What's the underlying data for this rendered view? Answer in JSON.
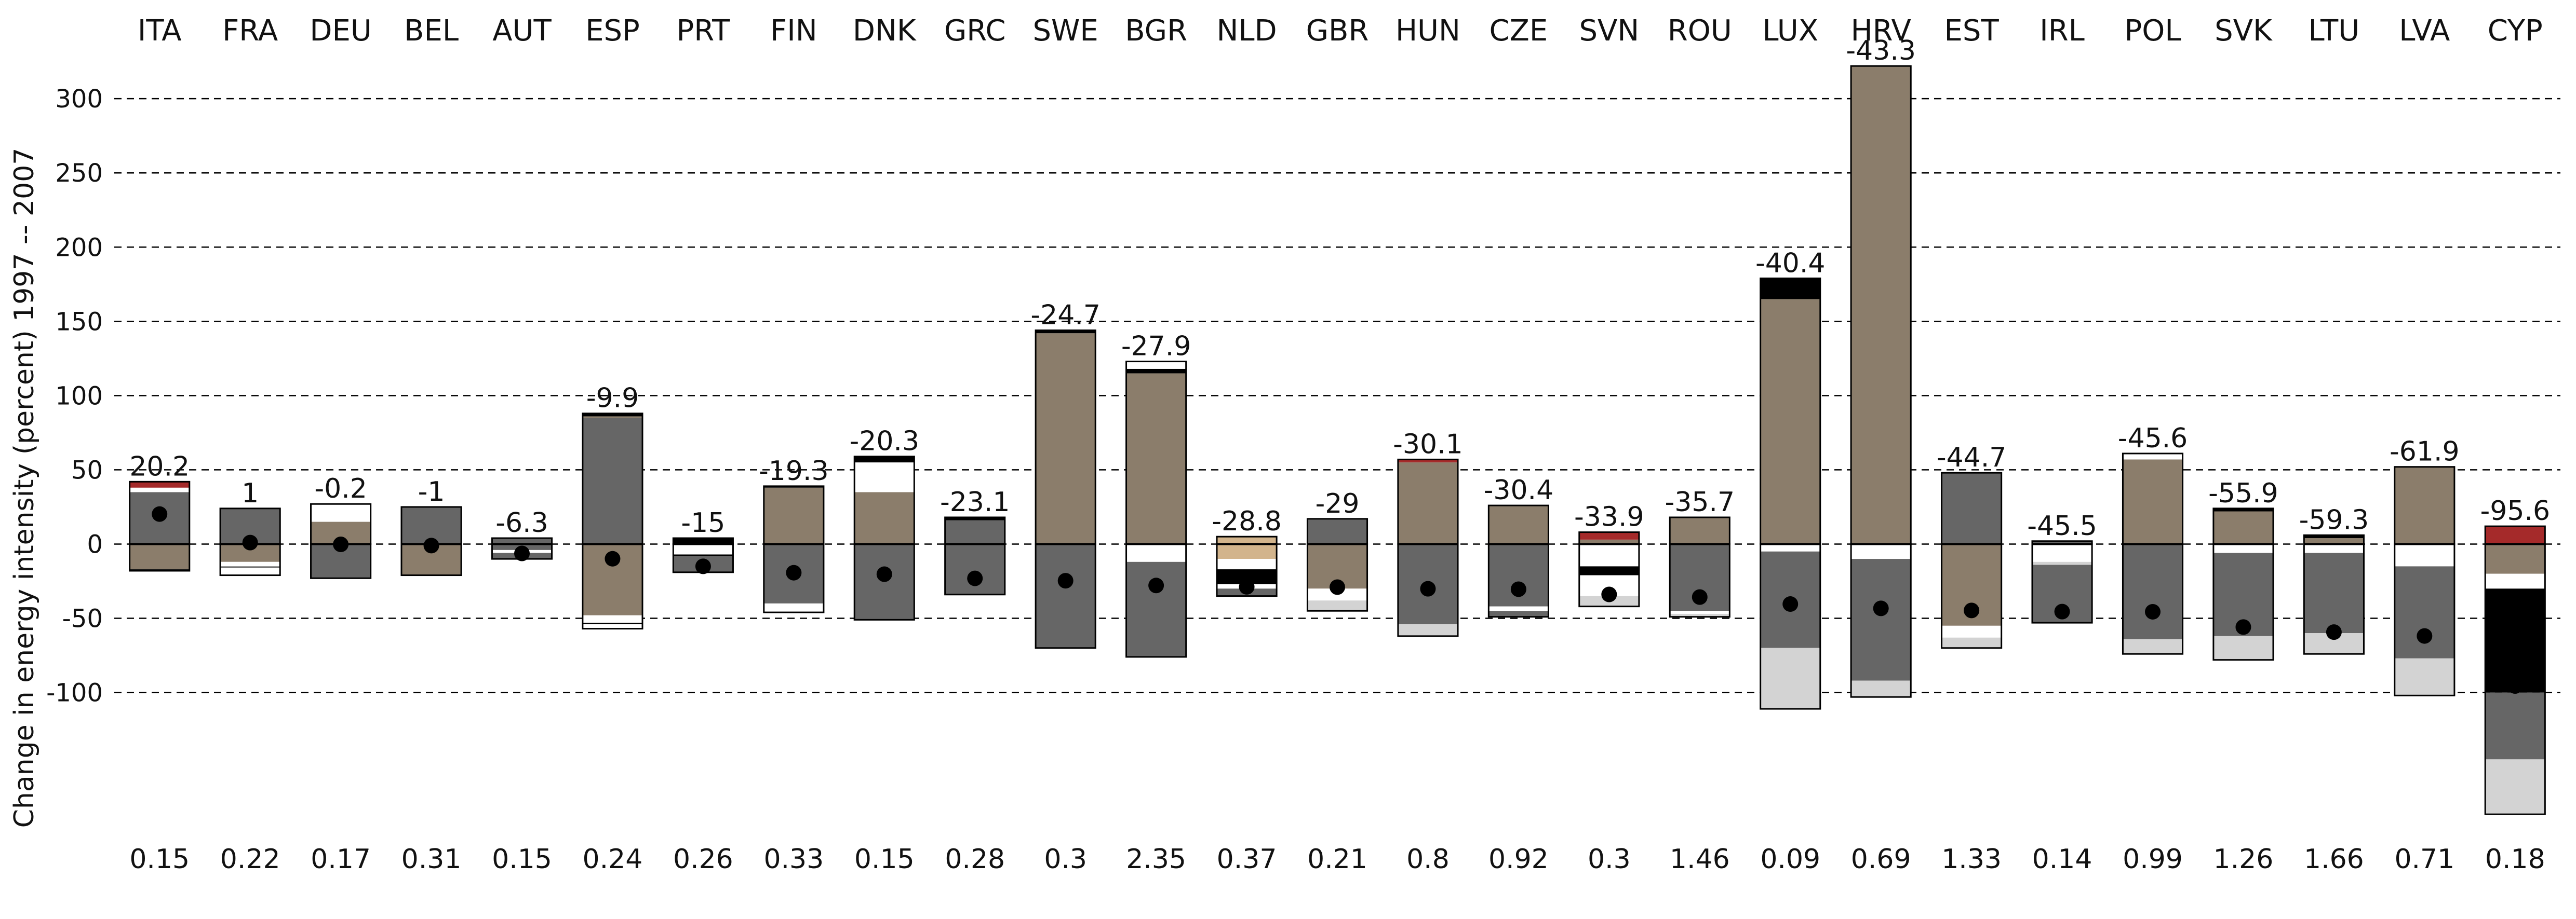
{
  "chart_data": {
    "type": "bar",
    "ylabel": "Change in energy intensity (percent) 1997 -- 2007",
    "ylim": [
      -205,
      335
    ],
    "yticks": [
      -100,
      -50,
      0,
      50,
      100,
      150,
      200,
      250,
      300
    ],
    "grid": true,
    "colors": {
      "darkgray": "#666666",
      "brown": "#8b7d6b",
      "white": "#ffffff",
      "black": "#000000",
      "red": "#a52a2a",
      "lightgray": "#d3d3d3",
      "tan": "#d2b48c"
    },
    "categories": [
      "ITA",
      "FRA",
      "DEU",
      "BEL",
      "AUT",
      "ESP",
      "PRT",
      "FIN",
      "DNK",
      "GRC",
      "SWE",
      "BGR",
      "NLD",
      "GBR",
      "HUN",
      "CZE",
      "SVN",
      "ROU",
      "LUX",
      "HRV",
      "EST",
      "IRL",
      "POL",
      "SVK",
      "LTU",
      "LVA",
      "CYP"
    ],
    "total_change": [
      "20.2",
      "1",
      "-0.2",
      "-1",
      "-6.3",
      "-9.9",
      "-15",
      "-19.3",
      "-20.3",
      "-23.1",
      "-24.7",
      "-27.9",
      "-28.8",
      "-29",
      "-30.1",
      "-30.4",
      "-33.9",
      "-35.7",
      "-40.4",
      "-43.3",
      "-44.7",
      "-45.5",
      "-45.6",
      "-55.9",
      "-59.3",
      "-61.9",
      "-95.6"
    ],
    "total_values": [
      20.2,
      1,
      -0.2,
      -1,
      -6.3,
      -9.9,
      -15,
      -19.3,
      -20.3,
      -23.1,
      -24.7,
      -27.9,
      -28.8,
      -29,
      -30.1,
      -30.4,
      -33.9,
      -35.7,
      -40.4,
      -43.3,
      -44.7,
      -45.5,
      -45.6,
      -55.9,
      -59.3,
      -61.9,
      -95.6
    ],
    "bottom_values": [
      "0.15",
      "0.22",
      "0.17",
      "0.31",
      "0.15",
      "0.24",
      "0.26",
      "0.33",
      "0.15",
      "0.28",
      "0.3",
      "2.35",
      "0.37",
      "0.21",
      "0.8",
      "0.92",
      "0.3",
      "1.46",
      "0.09",
      "0.69",
      "1.33",
      "0.14",
      "0.99",
      "1.26",
      "1.66",
      "0.71",
      "0.18"
    ],
    "positive_segments": [
      [
        [
          "darkgray",
          35
        ],
        [
          "white",
          3
        ],
        [
          "red",
          4
        ]
      ],
      [
        [
          "darkgray",
          24
        ]
      ],
      [
        [
          "brown",
          15
        ],
        [
          "white",
          12
        ]
      ],
      [
        [
          "darkgray",
          25
        ]
      ],
      [
        [
          "darkgray",
          4
        ]
      ],
      [
        [
          "darkgray",
          85
        ],
        [
          "brown",
          1
        ],
        [
          "black",
          2
        ]
      ],
      [
        [
          "black",
          4
        ]
      ],
      [
        [
          "brown",
          38
        ],
        [
          "black",
          1
        ]
      ],
      [
        [
          "brown",
          35
        ],
        [
          "white",
          20
        ],
        [
          "black",
          4
        ]
      ],
      [
        [
          "darkgray",
          16
        ],
        [
          "black",
          2
        ]
      ],
      [
        [
          "brown",
          142
        ],
        [
          "black",
          2
        ]
      ],
      [
        [
          "brown",
          115
        ],
        [
          "black",
          3
        ],
        [
          "white",
          5
        ]
      ],
      [
        [
          "tan",
          5
        ]
      ],
      [
        [
          "darkgray",
          17
        ]
      ],
      [
        [
          "brown",
          55
        ],
        [
          "red",
          2
        ]
      ],
      [
        [
          "brown",
          26
        ]
      ],
      [
        [
          "brown",
          3
        ],
        [
          "red",
          5
        ]
      ],
      [
        [
          "brown",
          18
        ]
      ],
      [
        [
          "brown",
          165
        ],
        [
          "black",
          14
        ]
      ],
      [
        [
          "brown",
          322
        ]
      ],
      [
        [
          "darkgray",
          48
        ]
      ],
      [
        [
          "darkgray",
          2
        ]
      ],
      [
        [
          "brown",
          57
        ],
        [
          "white",
          4
        ]
      ],
      [
        [
          "brown",
          22
        ],
        [
          "black",
          2
        ]
      ],
      [
        [
          "brown",
          4
        ],
        [
          "black",
          2
        ]
      ],
      [
        [
          "brown",
          52
        ]
      ],
      [
        [
          "red",
          12
        ]
      ]
    ],
    "negative_segments": [
      [
        [
          "brown",
          17
        ],
        [
          "black",
          1
        ]
      ],
      [
        [
          "brown",
          12
        ],
        [
          "white",
          3
        ],
        [
          "darkgray",
          1
        ],
        [
          "white",
          5
        ]
      ],
      [
        [
          "darkgray",
          23
        ]
      ],
      [
        [
          "brown",
          21
        ]
      ],
      [
        [
          "darkgray",
          4
        ],
        [
          "white",
          2
        ],
        [
          "darkgray",
          4
        ]
      ],
      [
        [
          "brown",
          48
        ],
        [
          "white",
          5
        ],
        [
          "black",
          1
        ],
        [
          "white",
          3
        ]
      ],
      [
        [
          "white",
          7
        ],
        [
          "black",
          1
        ],
        [
          "darkgray",
          11
        ]
      ],
      [
        [
          "darkgray",
          40
        ],
        [
          "white",
          6
        ]
      ],
      [
        [
          "darkgray",
          51
        ]
      ],
      [
        [
          "darkgray",
          34
        ]
      ],
      [
        [
          "darkgray",
          70
        ]
      ],
      [
        [
          "white",
          12
        ],
        [
          "darkgray",
          64
        ]
      ],
      [
        [
          "tan",
          10
        ],
        [
          "white",
          7
        ],
        [
          "black",
          10
        ],
        [
          "white",
          3
        ],
        [
          "darkgray",
          5
        ]
      ],
      [
        [
          "brown",
          30
        ],
        [
          "white",
          8
        ],
        [
          "lightgray",
          7
        ]
      ],
      [
        [
          "darkgray",
          54
        ],
        [
          "lightgray",
          8
        ]
      ],
      [
        [
          "darkgray",
          42
        ],
        [
          "white",
          3
        ],
        [
          "darkgray",
          4
        ]
      ],
      [
        [
          "white",
          15
        ],
        [
          "black",
          6
        ],
        [
          "white",
          14
        ],
        [
          "lightgray",
          7
        ]
      ],
      [
        [
          "darkgray",
          45
        ],
        [
          "white",
          2
        ],
        [
          "lightgray",
          2
        ]
      ],
      [
        [
          "white",
          5
        ],
        [
          "darkgray",
          65
        ],
        [
          "lightgray",
          41
        ]
      ],
      [
        [
          "white",
          10
        ],
        [
          "darkgray",
          82
        ],
        [
          "lightgray",
          11
        ]
      ],
      [
        [
          "brown",
          55
        ],
        [
          "white",
          8
        ],
        [
          "lightgray",
          7
        ]
      ],
      [
        [
          "white",
          12
        ],
        [
          "lightgray",
          2
        ],
        [
          "darkgray",
          39
        ]
      ],
      [
        [
          "darkgray",
          64
        ],
        [
          "lightgray",
          10
        ]
      ],
      [
        [
          "white",
          6
        ],
        [
          "darkgray",
          56
        ],
        [
          "lightgray",
          16
        ]
      ],
      [
        [
          "white",
          6
        ],
        [
          "darkgray",
          54
        ],
        [
          "lightgray",
          14
        ]
      ],
      [
        [
          "white",
          15
        ],
        [
          "darkgray",
          62
        ],
        [
          "lightgray",
          25
        ]
      ],
      [
        [
          "brown",
          20
        ],
        [
          "white",
          10
        ],
        [
          "black",
          70
        ],
        [
          "darkgray",
          45
        ],
        [
          "lightgray",
          37
        ]
      ]
    ]
  }
}
